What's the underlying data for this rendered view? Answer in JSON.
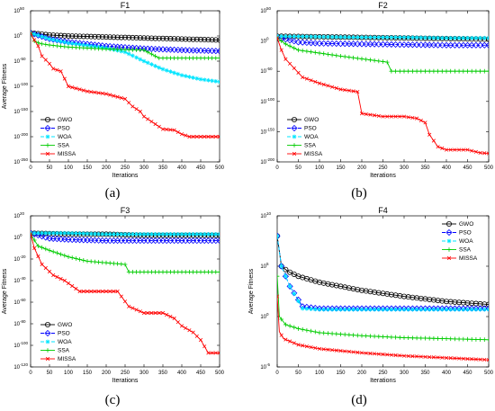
{
  "chart_data": [
    {
      "type": "line",
      "title": "F1",
      "caption": "(a)",
      "xlabel": "Iterations",
      "ylabel": "Average Fitness",
      "xlim": [
        0,
        500
      ],
      "ylog": true,
      "ylim_exp": [
        -250,
        50
      ],
      "ytick_exp": [
        50,
        0,
        -50,
        -100,
        -150,
        -200,
        -250
      ],
      "legend_position": "lower-left",
      "series": [
        {
          "name": "GWO",
          "color": "#000000",
          "marker": "circle",
          "dash": "solid",
          "x": [
            0,
            50,
            100,
            200,
            300,
            400,
            500
          ],
          "y_exp": [
            6,
            2,
            0,
            -2,
            -4,
            -6,
            -8
          ]
        },
        {
          "name": "PSO",
          "color": "#0000ff",
          "marker": "diamond",
          "dash": "dashed",
          "x": [
            0,
            50,
            100,
            200,
            300,
            400,
            500
          ],
          "y_exp": [
            6,
            -6,
            -12,
            -20,
            -25,
            -28,
            -30
          ]
        },
        {
          "name": "WOA",
          "color": "#00e5ff",
          "marker": "star",
          "dash": "dashed",
          "x": [
            0,
            50,
            100,
            200,
            250,
            300,
            350,
            400,
            450,
            500
          ],
          "y_exp": [
            6,
            -6,
            -14,
            -24,
            -32,
            -50,
            -66,
            -78,
            -86,
            -91
          ]
        },
        {
          "name": "SSA",
          "color": "#00cc00",
          "marker": "plus",
          "dash": "solid",
          "x": [
            0,
            10,
            25,
            50,
            100,
            200,
            300,
            330,
            340,
            500
          ],
          "y_exp": [
            5,
            -10,
            -15,
            -18,
            -22,
            -26,
            -28,
            -40,
            -44,
            -44
          ]
        },
        {
          "name": "MISSA",
          "color": "#ff0000",
          "marker": "x",
          "dash": "solid",
          "x": [
            0,
            10,
            20,
            30,
            50,
            60,
            80,
            100,
            150,
            200,
            250,
            270,
            290,
            300,
            320,
            350,
            380,
            400,
            420,
            500
          ],
          "y_exp": [
            5,
            -8,
            -20,
            -40,
            -55,
            -65,
            -70,
            -100,
            -110,
            -115,
            -125,
            -140,
            -150,
            -160,
            -170,
            -185,
            -187,
            -195,
            -200,
            -200
          ]
        }
      ]
    },
    {
      "type": "line",
      "title": "F2",
      "caption": "(b)",
      "xlabel": "Iterations",
      "ylabel": "",
      "xlim": [
        0,
        500
      ],
      "ylog": true,
      "ylim_exp": [
        -200,
        50
      ],
      "ytick_exp": [
        50,
        0,
        -50,
        -100,
        -150,
        -200
      ],
      "legend_position": "lower-left",
      "series": [
        {
          "name": "GWO",
          "color": "#000000",
          "marker": "circle",
          "dash": "solid",
          "x": [
            0,
            100,
            200,
            300,
            400,
            500
          ],
          "y_exp": [
            8,
            7,
            6,
            5,
            4,
            3
          ]
        },
        {
          "name": "PSO",
          "color": "#0000ff",
          "marker": "diamond",
          "dash": "dashed",
          "x": [
            0,
            50,
            100,
            200,
            300,
            400,
            500
          ],
          "y_exp": [
            6,
            -2,
            -4,
            -5,
            -6,
            -7,
            -7
          ]
        },
        {
          "name": "WOA",
          "color": "#00e5ff",
          "marker": "star",
          "dash": "dashed",
          "x": [
            0,
            100,
            200,
            300,
            400,
            500
          ],
          "y_exp": [
            8,
            7,
            6,
            6,
            5,
            5
          ]
        },
        {
          "name": "SSA",
          "color": "#00cc00",
          "marker": "plus",
          "dash": "solid",
          "x": [
            0,
            20,
            50,
            100,
            150,
            260,
            270,
            500
          ],
          "y_exp": [
            5,
            -5,
            -15,
            -20,
            -25,
            -35,
            -50,
            -50
          ]
        },
        {
          "name": "MISSA",
          "color": "#ff0000",
          "marker": "x",
          "dash": "solid",
          "x": [
            0,
            10,
            20,
            40,
            60,
            100,
            150,
            190,
            200,
            250,
            300,
            330,
            350,
            360,
            380,
            400,
            450,
            480,
            500
          ],
          "y_exp": [
            5,
            -15,
            -30,
            -45,
            -60,
            -70,
            -80,
            -84,
            -120,
            -125,
            -125,
            -128,
            -135,
            -155,
            -175,
            -180,
            -180,
            -185,
            -186
          ]
        }
      ]
    },
    {
      "type": "line",
      "title": "F3",
      "caption": "(c)",
      "xlabel": "Iterations",
      "ylabel": "Average Fitness",
      "xlim": [
        0,
        500
      ],
      "ylog": true,
      "ylim_exp": [
        -120,
        20
      ],
      "ytick_exp": [
        20,
        0,
        -20,
        -40,
        -60,
        -80,
        -100,
        -120
      ],
      "legend_position": "lower-left",
      "series": [
        {
          "name": "GWO",
          "color": "#000000",
          "marker": "circle",
          "dash": "solid",
          "x": [
            0,
            100,
            200,
            300,
            400,
            500
          ],
          "y_exp": [
            4,
            3,
            3,
            2,
            2,
            2
          ]
        },
        {
          "name": "PSO",
          "color": "#0000ff",
          "marker": "diamond",
          "dash": "dashed",
          "x": [
            0,
            50,
            100,
            200,
            300,
            400,
            500
          ],
          "y_exp": [
            4,
            -1,
            -2,
            -3,
            -3,
            -3,
            -3
          ]
        },
        {
          "name": "WOA",
          "color": "#00e5ff",
          "marker": "star",
          "dash": "dashed",
          "x": [
            0,
            100,
            200,
            300,
            400,
            500
          ],
          "y_exp": [
            4,
            4,
            3,
            3,
            3,
            3
          ]
        },
        {
          "name": "SSA",
          "color": "#00cc00",
          "marker": "plus",
          "dash": "solid",
          "x": [
            0,
            20,
            50,
            100,
            150,
            250,
            260,
            500
          ],
          "y_exp": [
            3,
            -8,
            -12,
            -18,
            -22,
            -25,
            -32,
            -32
          ]
        },
        {
          "name": "MISSA",
          "color": "#ff0000",
          "marker": "x",
          "dash": "solid",
          "x": [
            0,
            10,
            30,
            60,
            90,
            130,
            230,
            260,
            300,
            350,
            380,
            400,
            430,
            450,
            470,
            500
          ],
          "y_exp": [
            3,
            -10,
            -25,
            -35,
            -40,
            -50,
            -50,
            -64,
            -70,
            -70,
            -75,
            -82,
            -88,
            -95,
            -107,
            -107
          ]
        }
      ]
    },
    {
      "type": "line",
      "title": "F4",
      "caption": "(d)",
      "xlabel": "Iterations",
      "ylabel": "Average Fitness",
      "xlim": [
        0,
        500
      ],
      "ylog": true,
      "ylim_exp": [
        -5,
        10
      ],
      "ytick_exp": [
        10,
        5,
        0,
        -5
      ],
      "legend_position": "upper-right",
      "series": [
        {
          "name": "GWO",
          "color": "#000000",
          "marker": "circle",
          "dash": "solid",
          "x": [
            0,
            10,
            25,
            50,
            100,
            150,
            200,
            300,
            400,
            500
          ],
          "y_exp": [
            8,
            5,
            4.5,
            4,
            3.4,
            3,
            2.6,
            2.0,
            1.5,
            1.2
          ]
        },
        {
          "name": "PSO",
          "color": "#0000ff",
          "marker": "diamond",
          "dash": "dashed",
          "x": [
            0,
            10,
            30,
            60,
            100,
            200,
            300,
            400,
            500
          ],
          "y_exp": [
            8,
            5,
            3,
            1.0,
            0.8,
            0.8,
            0.8,
            0.8,
            0.8
          ]
        },
        {
          "name": "WOA",
          "color": "#00e5ff",
          "marker": "star",
          "dash": "dashed",
          "x": [
            0,
            10,
            30,
            60,
            100,
            200,
            300,
            400,
            500
          ],
          "y_exp": [
            8,
            5,
            3,
            0.8,
            0.7,
            0.7,
            0.7,
            0.7,
            0.7
          ]
        },
        {
          "name": "SSA",
          "color": "#00cc00",
          "marker": "plus",
          "dash": "solid",
          "x": [
            0,
            5,
            20,
            50,
            100,
            200,
            300,
            400,
            500
          ],
          "y_exp": [
            4,
            0,
            -0.8,
            -1.2,
            -1.6,
            -1.9,
            -2.1,
            -2.2,
            -2.3
          ]
        },
        {
          "name": "MISSA",
          "color": "#ff0000",
          "marker": "x",
          "dash": "solid",
          "x": [
            0,
            5,
            15,
            50,
            100,
            200,
            300,
            400,
            500
          ],
          "y_exp": [
            2,
            -1.5,
            -2.2,
            -2.8,
            -3.2,
            -3.6,
            -3.9,
            -4.1,
            -4.3
          ]
        }
      ]
    }
  ]
}
